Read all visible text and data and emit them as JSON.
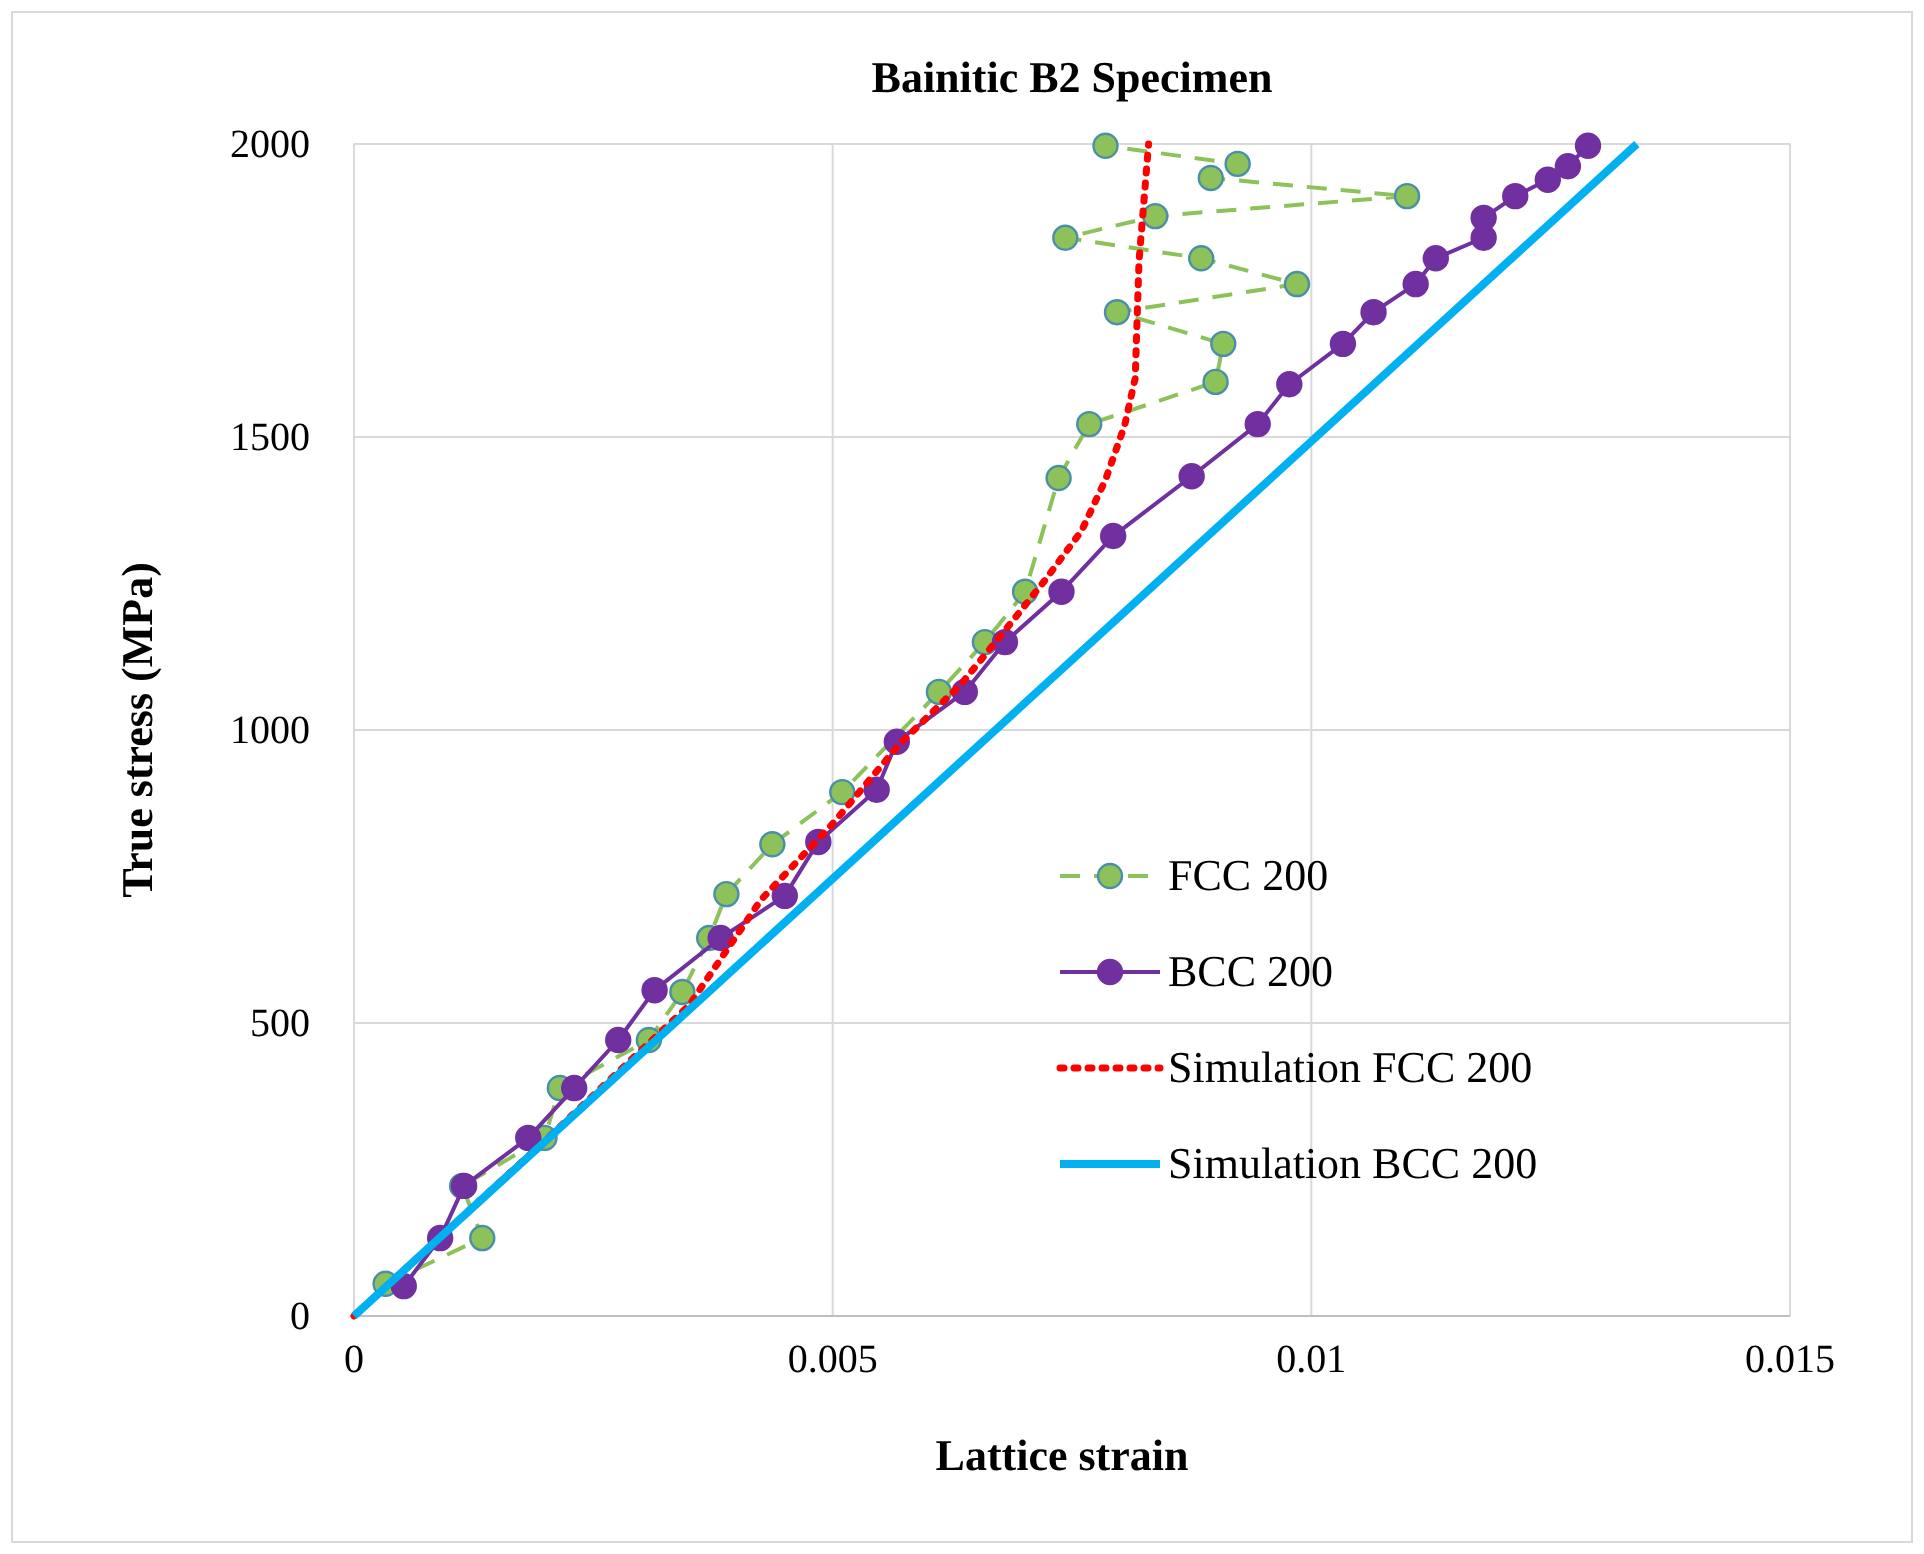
{
  "chart_data": {
    "type": "line",
    "title": "Bainitic B2 Specimen",
    "xlabel": "Lattice strain",
    "ylabel": "True stress (MPa)",
    "xlim": [
      0,
      0.015
    ],
    "xticks": [
      0,
      0.005,
      0.01,
      0.015
    ],
    "ylim": [
      0,
      2000
    ],
    "yticks": [
      0,
      500,
      1000,
      1500,
      2000
    ],
    "grid": true,
    "legend": "bottom right",
    "series": [
      {
        "name": "FCC 200",
        "color": "#8dc15a",
        "marker": "circle",
        "line_style": "dashed",
        "x": [
          0.00033,
          0.00134,
          0.00113,
          0.00199,
          0.00215,
          0.00308,
          0.00343,
          0.00371,
          0.00389,
          0.00437,
          0.0051,
          0.00611,
          0.00659,
          0.00701,
          0.00736,
          0.00768,
          0.009,
          0.00908,
          0.00797,
          0.00985,
          0.00885,
          0.00743,
          0.00837,
          0.011,
          0.00895,
          0.00923,
          0.00785
        ],
        "values": [
          55,
          133,
          222,
          304,
          389,
          471,
          553,
          645,
          720,
          805,
          894,
          1065,
          1150,
          1236,
          1430,
          1522,
          1594,
          1659,
          1713,
          1761,
          1805,
          1840,
          1877,
          1911,
          1942,
          1966,
          1997
        ]
      },
      {
        "name": "BCC 200",
        "color": "#7030a0",
        "marker": "circle",
        "line_style": "solid",
        "x": [
          0.00052,
          0.0009,
          0.00115,
          0.00182,
          0.0023,
          0.00276,
          0.00314,
          0.00383,
          0.0045,
          0.00485,
          0.00546,
          0.00567,
          0.00638,
          0.0068,
          0.00739,
          0.00793,
          0.00875,
          0.00944,
          0.00977,
          0.01033,
          0.01065,
          0.01109,
          0.0113,
          0.0118,
          0.0118,
          0.01213,
          0.01247,
          0.01268,
          0.01289
        ],
        "values": [
          51,
          133,
          222,
          304,
          389,
          471,
          556,
          645,
          717,
          809,
          898,
          980,
          1065,
          1150,
          1236,
          1331,
          1433,
          1522,
          1590,
          1659,
          1713,
          1761,
          1805,
          1840,
          1874,
          1911,
          1939,
          1962,
          1997
        ]
      },
      {
        "name": "Simulation FCC 200",
        "color": "#ff0000",
        "marker": "none",
        "line_style": "dotted",
        "x": [
          0,
          0.002,
          0.0035,
          0.00425,
          0.005,
          0.0057,
          0.00634,
          0.0068,
          0.00722,
          0.0076,
          0.00785,
          0.00805,
          0.00816,
          0.0082,
          0.0083
        ],
        "values": [
          0,
          300,
          530,
          710,
          840,
          976,
          1078,
          1170,
          1256,
          1340,
          1427,
          1520,
          1600,
          1800,
          2000
        ]
      },
      {
        "name": "Simulation BCC 200",
        "color": "#00b0f0",
        "marker": "none",
        "line_style": "solid",
        "x": [
          0,
          0.0134
        ],
        "values": [
          0,
          2000
        ]
      }
    ]
  }
}
